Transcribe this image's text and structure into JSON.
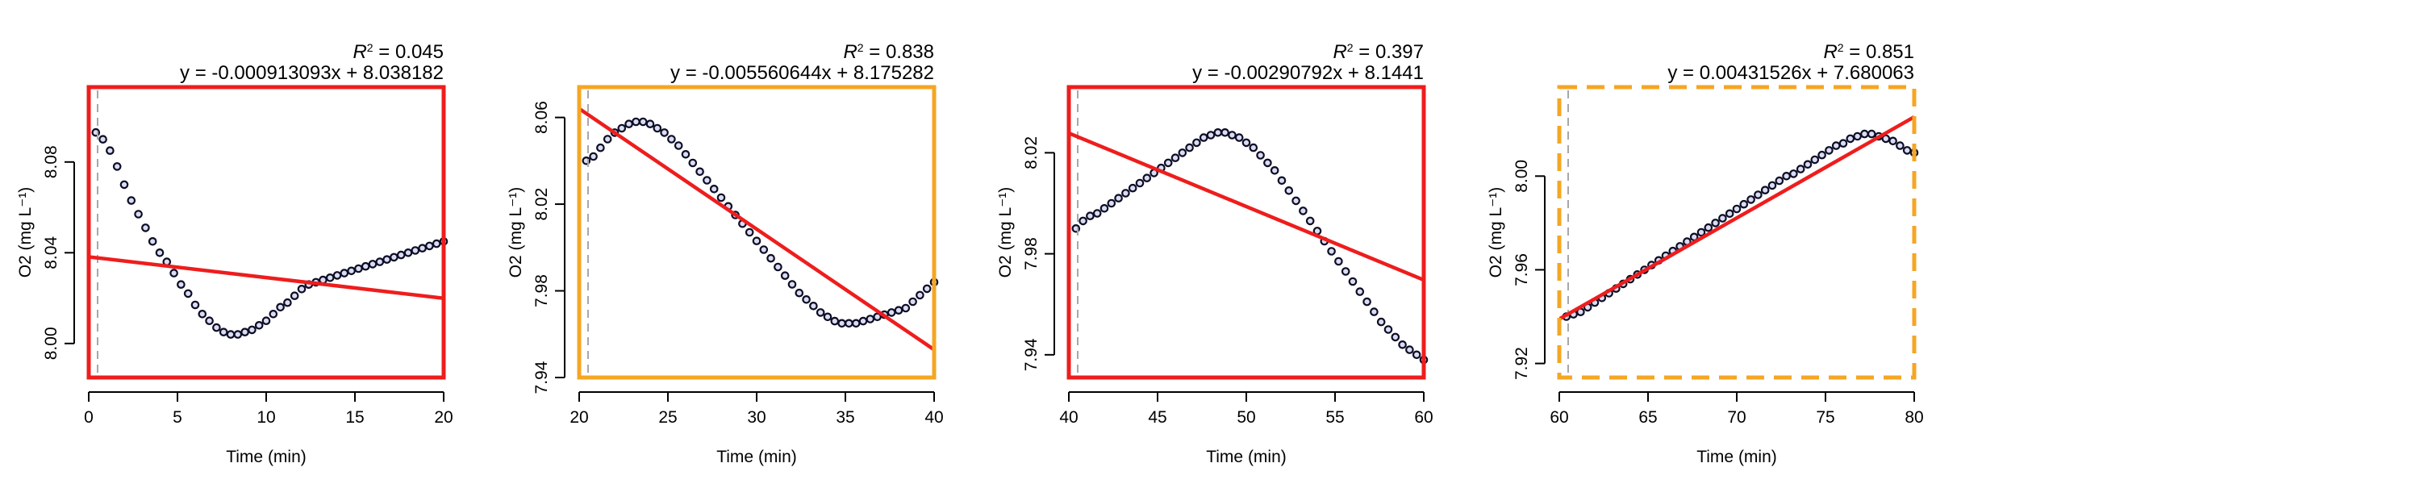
{
  "chart_data": [
    {
      "type": "scatter",
      "xlabel": "Time (min)",
      "ylabel": "O2 (mg L⁻¹)",
      "xlim": [
        0,
        20
      ],
      "ylim": [
        7.985,
        8.113
      ],
      "xticks": [
        "0",
        "5",
        "10",
        "15",
        "20"
      ],
      "xtick_values": [
        0,
        5,
        10,
        15,
        20
      ],
      "yticks": [
        "8.00",
        "8.04",
        "8.08"
      ],
      "ytick_values": [
        8.0,
        8.04,
        8.08
      ],
      "r2_value": "0.045",
      "equation": "y = -0.000913093x + 8.038182",
      "regression": {
        "slope": -0.000913093,
        "intercept": 8.038182
      },
      "vline_x": 0.5,
      "frame_color": "#ee1d1d",
      "frame_style": "solid",
      "series": [
        {
          "values": [
            [
              0.4,
              8.093
            ],
            [
              0.8,
              8.09
            ],
            [
              1.2,
              8.085
            ],
            [
              1.6,
              8.078
            ],
            [
              2,
              8.07
            ],
            [
              2.4,
              8.063
            ],
            [
              2.8,
              8.057
            ],
            [
              3.2,
              8.051
            ],
            [
              3.6,
              8.045
            ],
            [
              4,
              8.04
            ],
            [
              4.4,
              8.036
            ],
            [
              4.8,
              8.031
            ],
            [
              5.2,
              8.026
            ],
            [
              5.6,
              8.022
            ],
            [
              6,
              8.017
            ],
            [
              6.4,
              8.013
            ],
            [
              6.8,
              8.01
            ],
            [
              7.2,
              8.007
            ],
            [
              7.6,
              8.005
            ],
            [
              8,
              8.004
            ],
            [
              8.4,
              8.004
            ],
            [
              8.8,
              8.005
            ],
            [
              9.2,
              8.006
            ],
            [
              9.6,
              8.008
            ],
            [
              10,
              8.01
            ],
            [
              10.4,
              8.013
            ],
            [
              10.8,
              8.016
            ],
            [
              11.2,
              8.018
            ],
            [
              11.6,
              8.021
            ],
            [
              12,
              8.024
            ],
            [
              12.4,
              8.026
            ],
            [
              12.8,
              8.027
            ],
            [
              13.2,
              8.028
            ],
            [
              13.6,
              8.029
            ],
            [
              14,
              8.03
            ],
            [
              14.4,
              8.031
            ],
            [
              14.8,
              8.032
            ],
            [
              15.2,
              8.033
            ],
            [
              15.6,
              8.034
            ],
            [
              16,
              8.035
            ],
            [
              16.4,
              8.036
            ],
            [
              16.8,
              8.037
            ],
            [
              17.2,
              8.038
            ],
            [
              17.6,
              8.039
            ],
            [
              18,
              8.04
            ],
            [
              18.4,
              8.041
            ],
            [
              18.8,
              8.042
            ],
            [
              19.2,
              8.043
            ],
            [
              19.6,
              8.044
            ],
            [
              20,
              8.045
            ]
          ]
        }
      ]
    },
    {
      "type": "scatter",
      "xlabel": "Time (min)",
      "ylabel": "O2 (mg L⁻¹)",
      "xlim": [
        20,
        40
      ],
      "ylim": [
        7.94,
        8.074
      ],
      "xticks": [
        "20",
        "25",
        "30",
        "35",
        "40"
      ],
      "xtick_values": [
        20,
        25,
        30,
        35,
        40
      ],
      "yticks": [
        "7.94",
        "7.98",
        "8.02",
        "8.06"
      ],
      "ytick_values": [
        7.94,
        7.98,
        8.02,
        8.06
      ],
      "r2_value": "0.838",
      "equation": "y = -0.005560644x + 8.175282",
      "regression": {
        "slope": -0.005560644,
        "intercept": 8.175282
      },
      "vline_x": 20.5,
      "frame_color": "#f5a623",
      "frame_style": "solid",
      "series": [
        {
          "values": [
            [
              20.4,
              8.04
            ],
            [
              20.8,
              8.042
            ],
            [
              21.2,
              8.046
            ],
            [
              21.6,
              8.05
            ],
            [
              22,
              8.053
            ],
            [
              22.4,
              8.055
            ],
            [
              22.8,
              8.057
            ],
            [
              23.2,
              8.058
            ],
            [
              23.6,
              8.058
            ],
            [
              24,
              8.057
            ],
            [
              24.4,
              8.055
            ],
            [
              24.8,
              8.053
            ],
            [
              25.2,
              8.05
            ],
            [
              25.6,
              8.047
            ],
            [
              26,
              8.043
            ],
            [
              26.4,
              8.039
            ],
            [
              26.8,
              8.035
            ],
            [
              27.2,
              8.031
            ],
            [
              27.6,
              8.027
            ],
            [
              28,
              8.023
            ],
            [
              28.4,
              8.019
            ],
            [
              28.8,
              8.015
            ],
            [
              29.2,
              8.011
            ],
            [
              29.6,
              8.007
            ],
            [
              30,
              8.003
            ],
            [
              30.4,
              7.999
            ],
            [
              30.8,
              7.995
            ],
            [
              31.2,
              7.991
            ],
            [
              31.6,
              7.987
            ],
            [
              32,
              7.983
            ],
            [
              32.4,
              7.979
            ],
            [
              32.8,
              7.976
            ],
            [
              33.2,
              7.973
            ],
            [
              33.6,
              7.97
            ],
            [
              34,
              7.968
            ],
            [
              34.4,
              7.966
            ],
            [
              34.8,
              7.965
            ],
            [
              35.2,
              7.965
            ],
            [
              35.6,
              7.965
            ],
            [
              36,
              7.966
            ],
            [
              36.4,
              7.967
            ],
            [
              36.8,
              7.968
            ],
            [
              37.2,
              7.969
            ],
            [
              37.6,
              7.97
            ],
            [
              38,
              7.971
            ],
            [
              38.4,
              7.972
            ],
            [
              38.8,
              7.975
            ],
            [
              39.2,
              7.978
            ],
            [
              39.6,
              7.981
            ],
            [
              40,
              7.984
            ]
          ]
        }
      ]
    },
    {
      "type": "scatter",
      "xlabel": "Time (min)",
      "ylabel": "O2 (mg L⁻¹)",
      "xlim": [
        40,
        60
      ],
      "ylim": [
        7.931,
        8.046
      ],
      "xticks": [
        "40",
        "45",
        "50",
        "55",
        "60"
      ],
      "xtick_values": [
        40,
        45,
        50,
        55,
        60
      ],
      "yticks": [
        "7.94",
        "7.98",
        "8.02"
      ],
      "ytick_values": [
        7.94,
        7.98,
        8.02
      ],
      "r2_value": "0.397",
      "equation": "y = -0.00290792x + 8.1441",
      "regression": {
        "slope": -0.00290792,
        "intercept": 8.1441
      },
      "vline_x": 40.5,
      "frame_color": "#ee1d1d",
      "frame_style": "solid",
      "series": [
        {
          "values": [
            [
              40.4,
              7.99
            ],
            [
              40.8,
              7.993
            ],
            [
              41.2,
              7.995
            ],
            [
              41.6,
              7.996
            ],
            [
              42,
              7.998
            ],
            [
              42.4,
              8
            ],
            [
              42.8,
              8.002
            ],
            [
              43.2,
              8.004
            ],
            [
              43.6,
              8.006
            ],
            [
              44,
              8.008
            ],
            [
              44.4,
              8.01
            ],
            [
              44.8,
              8.012
            ],
            [
              45.2,
              8.014
            ],
            [
              45.6,
              8.016
            ],
            [
              46,
              8.018
            ],
            [
              46.4,
              8.02
            ],
            [
              46.8,
              8.022
            ],
            [
              47.2,
              8.024
            ],
            [
              47.6,
              8.026
            ],
            [
              48,
              8.027
            ],
            [
              48.4,
              8.028
            ],
            [
              48.8,
              8.028
            ],
            [
              49.2,
              8.027
            ],
            [
              49.6,
              8.026
            ],
            [
              50,
              8.024
            ],
            [
              50.4,
              8.022
            ],
            [
              50.8,
              8.019
            ],
            [
              51.2,
              8.016
            ],
            [
              51.6,
              8.013
            ],
            [
              52,
              8.009
            ],
            [
              52.4,
              8.005
            ],
            [
              52.8,
              8.001
            ],
            [
              53.2,
              7.997
            ],
            [
              53.6,
              7.993
            ],
            [
              54,
              7.989
            ],
            [
              54.4,
              7.985
            ],
            [
              54.8,
              7.981
            ],
            [
              55.2,
              7.977
            ],
            [
              55.6,
              7.973
            ],
            [
              56,
              7.969
            ],
            [
              56.4,
              7.965
            ],
            [
              56.8,
              7.961
            ],
            [
              57.2,
              7.957
            ],
            [
              57.6,
              7.953
            ],
            [
              58,
              7.95
            ],
            [
              58.4,
              7.947
            ],
            [
              58.8,
              7.944
            ],
            [
              59.2,
              7.942
            ],
            [
              59.6,
              7.94
            ],
            [
              60,
              7.938
            ]
          ]
        }
      ]
    },
    {
      "type": "scatter",
      "xlabel": "Time (min)",
      "ylabel": "O2 (mg L⁻¹)",
      "xlim": [
        60,
        80
      ],
      "ylim": [
        7.914,
        8.038
      ],
      "xticks": [
        "60",
        "65",
        "70",
        "75",
        "80"
      ],
      "xtick_values": [
        60,
        65,
        70,
        75,
        80
      ],
      "yticks": [
        "7.92",
        "7.96",
        "8.00"
      ],
      "ytick_values": [
        7.92,
        7.96,
        8.0
      ],
      "r2_value": "0.851",
      "equation": "y = 0.00431526x + 7.680063",
      "regression": {
        "slope": 0.00431526,
        "intercept": 7.680063
      },
      "vline_x": 60.5,
      "frame_color": "#f5a623",
      "frame_style": "dashed",
      "series": [
        {
          "values": [
            [
              60.4,
              7.94
            ],
            [
              60.8,
              7.941
            ],
            [
              61.2,
              7.942
            ],
            [
              61.6,
              7.944
            ],
            [
              62,
              7.946
            ],
            [
              62.4,
              7.948
            ],
            [
              62.8,
              7.95
            ],
            [
              63.2,
              7.952
            ],
            [
              63.6,
              7.954
            ],
            [
              64,
              7.956
            ],
            [
              64.4,
              7.958
            ],
            [
              64.8,
              7.96
            ],
            [
              65.2,
              7.962
            ],
            [
              65.6,
              7.964
            ],
            [
              66,
              7.966
            ],
            [
              66.4,
              7.968
            ],
            [
              66.8,
              7.97
            ],
            [
              67.2,
              7.972
            ],
            [
              67.6,
              7.974
            ],
            [
              68,
              7.976
            ],
            [
              68.4,
              7.978
            ],
            [
              68.8,
              7.98
            ],
            [
              69.2,
              7.982
            ],
            [
              69.6,
              7.984
            ],
            [
              70,
              7.986
            ],
            [
              70.4,
              7.988
            ],
            [
              70.8,
              7.99
            ],
            [
              71.2,
              7.992
            ],
            [
              71.6,
              7.994
            ],
            [
              72,
              7.996
            ],
            [
              72.4,
              7.998
            ],
            [
              72.8,
              8
            ],
            [
              73.2,
              8.001
            ],
            [
              73.6,
              8.003
            ],
            [
              74,
              8.005
            ],
            [
              74.4,
              8.007
            ],
            [
              74.8,
              8.009
            ],
            [
              75.2,
              8.011
            ],
            [
              75.6,
              8.013
            ],
            [
              76,
              8.014
            ],
            [
              76.4,
              8.016
            ],
            [
              76.8,
              8.017
            ],
            [
              77.2,
              8.018
            ],
            [
              77.6,
              8.018
            ],
            [
              78,
              8.017
            ],
            [
              78.4,
              8.016
            ],
            [
              78.8,
              8.015
            ],
            [
              79.2,
              8.013
            ],
            [
              79.6,
              8.011
            ],
            [
              80,
              8.01
            ]
          ]
        }
      ]
    }
  ]
}
